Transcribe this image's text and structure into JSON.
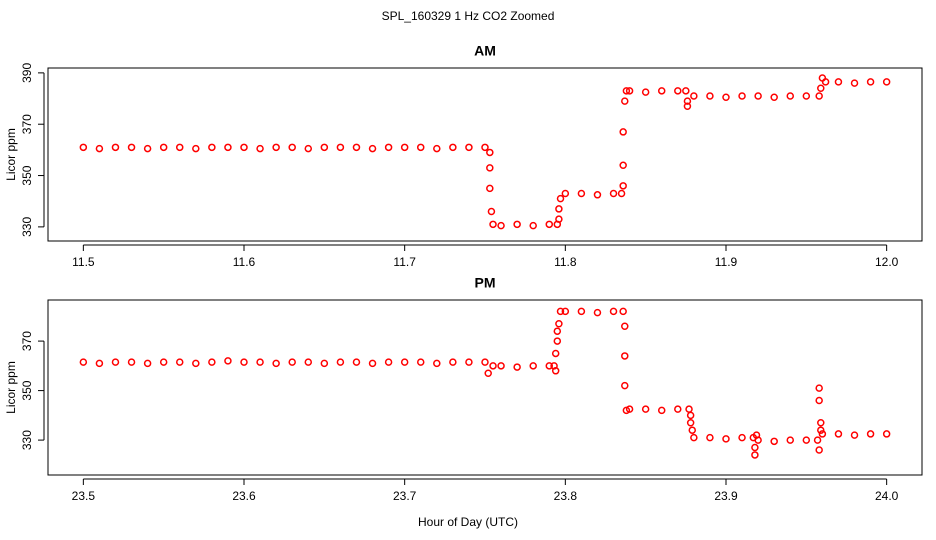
{
  "title": "SPL_160329  1 Hz CO2 Zoomed",
  "x_label": "Hour of Day (UTC)",
  "chart_data": [
    {
      "type": "scatter",
      "title": "AM",
      "y_label": "Licor ppm",
      "color": "#ff0000",
      "xlim": [
        11.478,
        12.022
      ],
      "ylim": [
        324.5,
        391.9
      ],
      "xticks": [
        11.5,
        11.6,
        11.7,
        11.8,
        11.9,
        {
          "value": 12,
          "label": "12.0"
        }
      ],
      "yticks": [
        330,
        350,
        370,
        390
      ],
      "x": [
        11.5,
        11.51,
        11.52,
        11.53,
        11.54,
        11.55,
        11.56,
        11.57,
        11.58,
        11.59,
        11.6,
        11.61,
        11.62,
        11.63,
        11.64,
        11.65,
        11.66,
        11.67,
        11.68,
        11.69,
        11.7,
        11.71,
        11.72,
        11.73,
        11.74,
        11.75,
        11.753,
        11.753,
        11.753,
        11.754,
        11.755,
        11.76,
        11.77,
        11.78,
        11.79,
        11.795,
        11.796,
        11.796,
        11.797,
        11.8,
        11.81,
        11.82,
        11.83,
        11.835,
        11.836,
        11.836,
        11.836,
        11.837,
        11.838,
        11.84,
        11.85,
        11.86,
        11.87,
        11.875,
        11.876,
        11.876,
        11.88,
        11.89,
        11.9,
        11.91,
        11.92,
        11.93,
        11.94,
        11.95,
        11.958,
        11.959,
        11.96,
        11.962,
        11.97,
        11.98,
        11.99,
        12.0
      ],
      "values": [
        361,
        360.5,
        361,
        361,
        360.5,
        361,
        361,
        360.5,
        361,
        361,
        361,
        360.5,
        361,
        361,
        360.5,
        361,
        361,
        361,
        360.5,
        361,
        361,
        361,
        360.5,
        361,
        361,
        361,
        359,
        353,
        345,
        336,
        331,
        330.5,
        331,
        330.5,
        331,
        331,
        333,
        337,
        341,
        343,
        343,
        342.5,
        343,
        343,
        346,
        354,
        367,
        379,
        383,
        383,
        382.5,
        383,
        383,
        383,
        377,
        379,
        381,
        381,
        380.5,
        381,
        381,
        380.5,
        381,
        381,
        381,
        384,
        388,
        386.5,
        386.5,
        386,
        386.5,
        386.5
      ]
    },
    {
      "type": "scatter",
      "title": "PM",
      "y_label": "Licor ppm",
      "color": "#ff0000",
      "xlim": [
        23.478,
        24.022
      ],
      "ylim": [
        315.9,
        386.6
      ],
      "xticks": [
        23.5,
        23.6,
        23.7,
        23.8,
        23.9,
        {
          "value": 24,
          "label": "24.0"
        }
      ],
      "yticks": [
        330,
        350,
        370
      ],
      "x": [
        23.5,
        23.51,
        23.52,
        23.53,
        23.54,
        23.55,
        23.56,
        23.57,
        23.58,
        23.59,
        23.6,
        23.61,
        23.62,
        23.63,
        23.64,
        23.65,
        23.66,
        23.67,
        23.68,
        23.69,
        23.7,
        23.71,
        23.72,
        23.73,
        23.74,
        23.75,
        23.752,
        23.755,
        23.76,
        23.77,
        23.78,
        23.79,
        23.793,
        23.794,
        23.794,
        23.795,
        23.795,
        23.796,
        23.797,
        23.8,
        23.81,
        23.82,
        23.83,
        23.836,
        23.837,
        23.837,
        23.837,
        23.838,
        23.84,
        23.85,
        23.86,
        23.87,
        23.877,
        23.878,
        23.878,
        23.879,
        23.88,
        23.89,
        23.9,
        23.91,
        23.917,
        23.918,
        23.918,
        23.919,
        23.92,
        23.93,
        23.94,
        23.95,
        23.957,
        23.958,
        23.958,
        23.958,
        23.959,
        23.959,
        23.96,
        23.97,
        23.98,
        23.99,
        24.0
      ],
      "values": [
        361.5,
        361,
        361.5,
        361.5,
        361,
        361.5,
        361.5,
        361,
        361.5,
        362,
        361.5,
        361.5,
        361,
        361.5,
        361.5,
        361,
        361.5,
        361.5,
        361,
        361.5,
        361.5,
        361.5,
        361,
        361.5,
        361.5,
        361.5,
        357,
        360,
        360,
        359.5,
        360,
        360,
        360,
        358,
        365,
        370,
        374,
        377,
        382,
        382,
        382,
        381.5,
        382,
        382,
        376,
        364,
        352,
        342,
        342.5,
        342.5,
        342,
        342.5,
        342.5,
        340,
        337,
        334,
        331,
        331,
        330.5,
        331,
        331,
        324,
        327,
        332,
        330,
        329.5,
        330,
        330,
        330,
        326,
        346,
        351,
        337,
        334,
        332.5,
        332.5,
        332,
        332.5,
        332.5
      ]
    }
  ]
}
